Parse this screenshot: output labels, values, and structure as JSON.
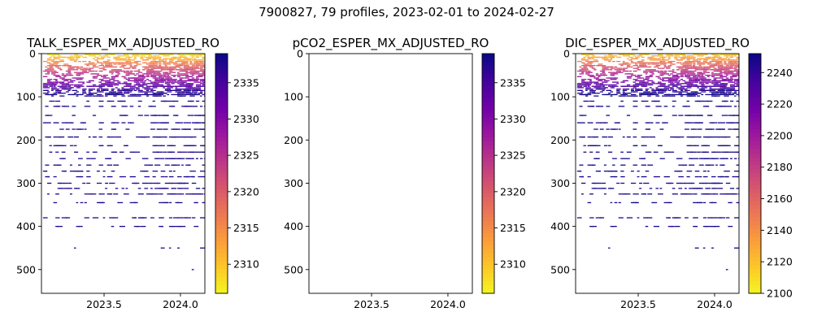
{
  "suptitle": "7900827, 79 profiles, 2023-02-01 to 2024-02-27",
  "chart_data": [
    {
      "type": "heatmap",
      "title": "TALK_ESPER_MX_ADJUSTED_RO",
      "xlabel": "",
      "ylabel": "",
      "x_range": [
        2023.09,
        2024.16
      ],
      "x_ticks": [
        2023.5,
        2024.0
      ],
      "x_tick_labels": [
        "2023.5",
        "2024.0"
      ],
      "y_range": [
        0,
        555
      ],
      "y_inverted": true,
      "y_ticks": [
        0,
        100,
        200,
        300,
        400,
        500
      ],
      "y_tick_labels": [
        "0",
        "100",
        "200",
        "300",
        "400",
        "500"
      ],
      "colorbar": {
        "colormap": "plasma_r",
        "range": [
          2306,
          2339
        ],
        "ticks": [
          2310,
          2315,
          2320,
          2325,
          2330,
          2335
        ],
        "tick_labels": [
          "2310",
          "2315",
          "2320",
          "2325",
          "2330",
          "2335"
        ]
      },
      "has_data": true,
      "surface_value": 2306,
      "deep_value": 2338,
      "seed": 11
    },
    {
      "type": "heatmap",
      "title": "pCO2_ESPER_MX_ADJUSTED_RO",
      "xlabel": "",
      "ylabel": "",
      "x_range": [
        2023.09,
        2024.16
      ],
      "x_ticks": [
        2023.5,
        2024.0
      ],
      "x_tick_labels": [
        "2023.5",
        "2024.0"
      ],
      "y_range": [
        0,
        555
      ],
      "y_inverted": true,
      "y_ticks": [
        0,
        100,
        200,
        300,
        400,
        500
      ],
      "y_tick_labels": [
        "0",
        "100",
        "200",
        "300",
        "400",
        "500"
      ],
      "colorbar": {
        "colormap": "plasma_r",
        "range": [
          2306,
          2339
        ],
        "ticks": [
          2310,
          2315,
          2320,
          2325,
          2330,
          2335
        ],
        "tick_labels": [
          "2310",
          "2315",
          "2320",
          "2325",
          "2330",
          "2335"
        ]
      },
      "has_data": false
    },
    {
      "type": "heatmap",
      "title": "DIC_ESPER_MX_ADJUSTED_RO",
      "xlabel": "",
      "ylabel": "",
      "x_range": [
        2023.09,
        2024.16
      ],
      "x_ticks": [
        2023.5,
        2024.0
      ],
      "x_tick_labels": [
        "2023.5",
        "2024.0"
      ],
      "y_range": [
        0,
        555
      ],
      "y_inverted": true,
      "y_ticks": [
        0,
        100,
        200,
        300,
        400,
        500
      ],
      "y_tick_labels": [
        "0",
        "100",
        "200",
        "300",
        "400",
        "500"
      ],
      "colorbar": {
        "colormap": "plasma_r",
        "range": [
          2100,
          2252
        ],
        "ticks": [
          2100,
          2120,
          2140,
          2160,
          2180,
          2200,
          2220,
          2240
        ],
        "tick_labels": [
          "2100",
          "2120",
          "2140",
          "2160",
          "2180",
          "2200",
          "2220",
          "2240"
        ]
      },
      "has_data": true,
      "surface_value": 2110,
      "deep_value": 2250,
      "seed": 11
    }
  ]
}
